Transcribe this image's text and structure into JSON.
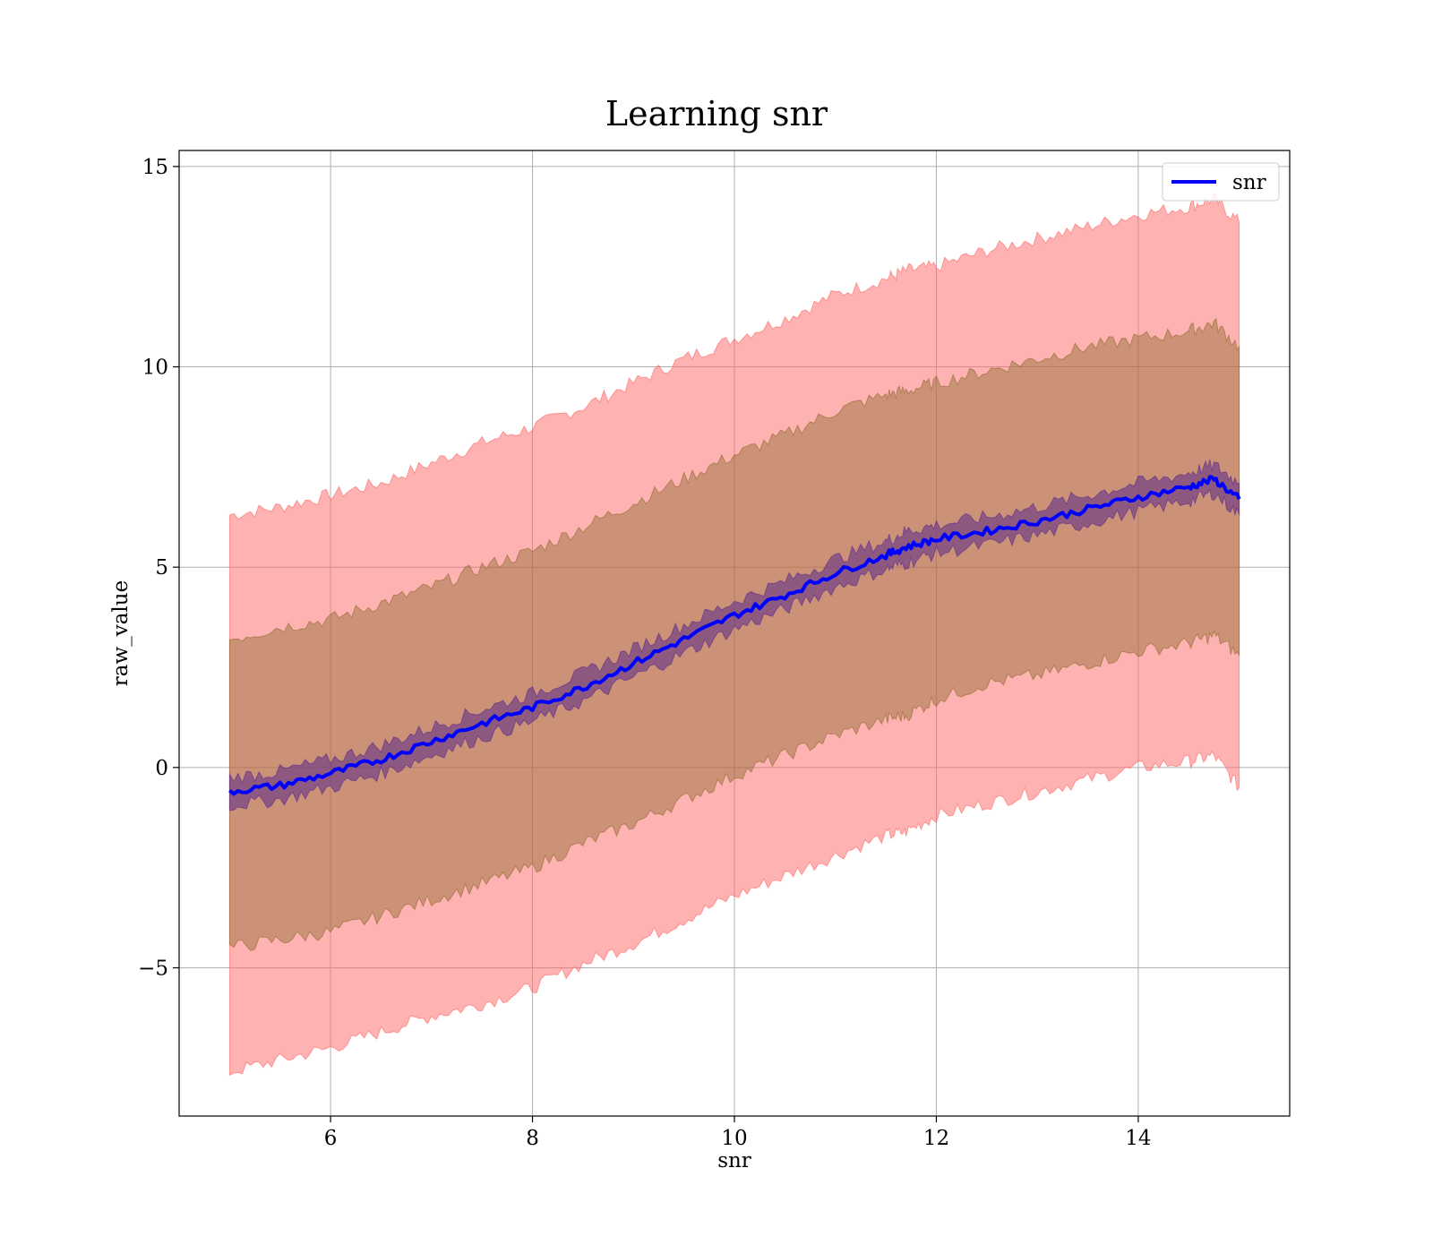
{
  "chart_data": {
    "type": "line",
    "title": "Learning snr",
    "xlabel": "snr",
    "ylabel": "raw_value",
    "xlim": [
      4.5,
      15.5
    ],
    "ylim": [
      -8.7,
      15.4
    ],
    "xticks": [
      6,
      8,
      10,
      12,
      14
    ],
    "yticks": [
      -5,
      0,
      5,
      10,
      15
    ],
    "grid": true,
    "legend": {
      "position": "top-right",
      "entries": [
        "snr"
      ]
    },
    "colors": {
      "line": "#0000ff",
      "band_outer": "#ff6666",
      "band_middle": "#8f6b2e",
      "band_inner": "#5b2a8a"
    },
    "x": [
      5.0,
      5.5,
      6.0,
      6.5,
      7.0,
      7.5,
      8.0,
      8.5,
      9.0,
      9.5,
      10.0,
      10.5,
      11.0,
      11.5,
      11.7,
      12.0,
      12.5,
      13.0,
      13.5,
      14.0,
      14.5,
      14.75,
      15.0
    ],
    "series": [
      {
        "name": "snr",
        "values": [
          -0.6,
          -0.45,
          -0.15,
          0.2,
          0.65,
          1.1,
          1.5,
          2.0,
          2.6,
          3.2,
          3.8,
          4.3,
          4.85,
          5.3,
          5.5,
          5.7,
          5.9,
          6.15,
          6.45,
          6.75,
          7.0,
          7.2,
          6.7
        ]
      }
    ],
    "bands": [
      {
        "level": "outer",
        "lower": [
          -7.6,
          -7.3,
          -7.0,
          -6.6,
          -6.2,
          -5.9,
          -5.5,
          -4.9,
          -4.4,
          -3.8,
          -3.2,
          -2.7,
          -2.2,
          -1.7,
          -1.6,
          -1.2,
          -0.9,
          -0.6,
          -0.3,
          0.0,
          0.15,
          0.3,
          -0.5
        ],
        "upper": [
          6.3,
          6.5,
          6.8,
          7.1,
          7.6,
          8.1,
          8.5,
          9.0,
          9.6,
          10.2,
          10.7,
          11.2,
          11.8,
          12.2,
          12.4,
          12.5,
          12.9,
          13.2,
          13.5,
          13.8,
          14.0,
          14.2,
          13.6
        ]
      },
      {
        "level": "middle",
        "lower": [
          -4.5,
          -4.3,
          -4.1,
          -3.7,
          -3.3,
          -2.9,
          -2.5,
          -1.9,
          -1.4,
          -0.8,
          -0.2,
          0.3,
          0.8,
          1.2,
          1.3,
          1.7,
          2.1,
          2.3,
          2.6,
          2.9,
          3.1,
          3.3,
          2.8
        ],
        "upper": [
          3.2,
          3.5,
          3.7,
          4.1,
          4.5,
          5.0,
          5.4,
          6.0,
          6.6,
          7.2,
          7.8,
          8.3,
          8.9,
          9.3,
          9.4,
          9.6,
          9.9,
          10.2,
          10.5,
          10.7,
          10.9,
          11.1,
          10.5
        ]
      },
      {
        "level": "inner",
        "lower": [
          -0.95,
          -0.8,
          -0.5,
          -0.15,
          0.3,
          0.75,
          1.15,
          1.65,
          2.25,
          2.85,
          3.45,
          3.95,
          4.5,
          4.95,
          5.1,
          5.35,
          5.55,
          5.8,
          6.1,
          6.4,
          6.65,
          6.85,
          6.3
        ],
        "upper": [
          -0.25,
          -0.1,
          0.2,
          0.55,
          1.0,
          1.45,
          1.85,
          2.35,
          2.95,
          3.55,
          4.15,
          4.65,
          5.2,
          5.65,
          5.9,
          6.05,
          6.25,
          6.5,
          6.8,
          7.1,
          7.35,
          7.55,
          7.1
        ]
      }
    ]
  }
}
